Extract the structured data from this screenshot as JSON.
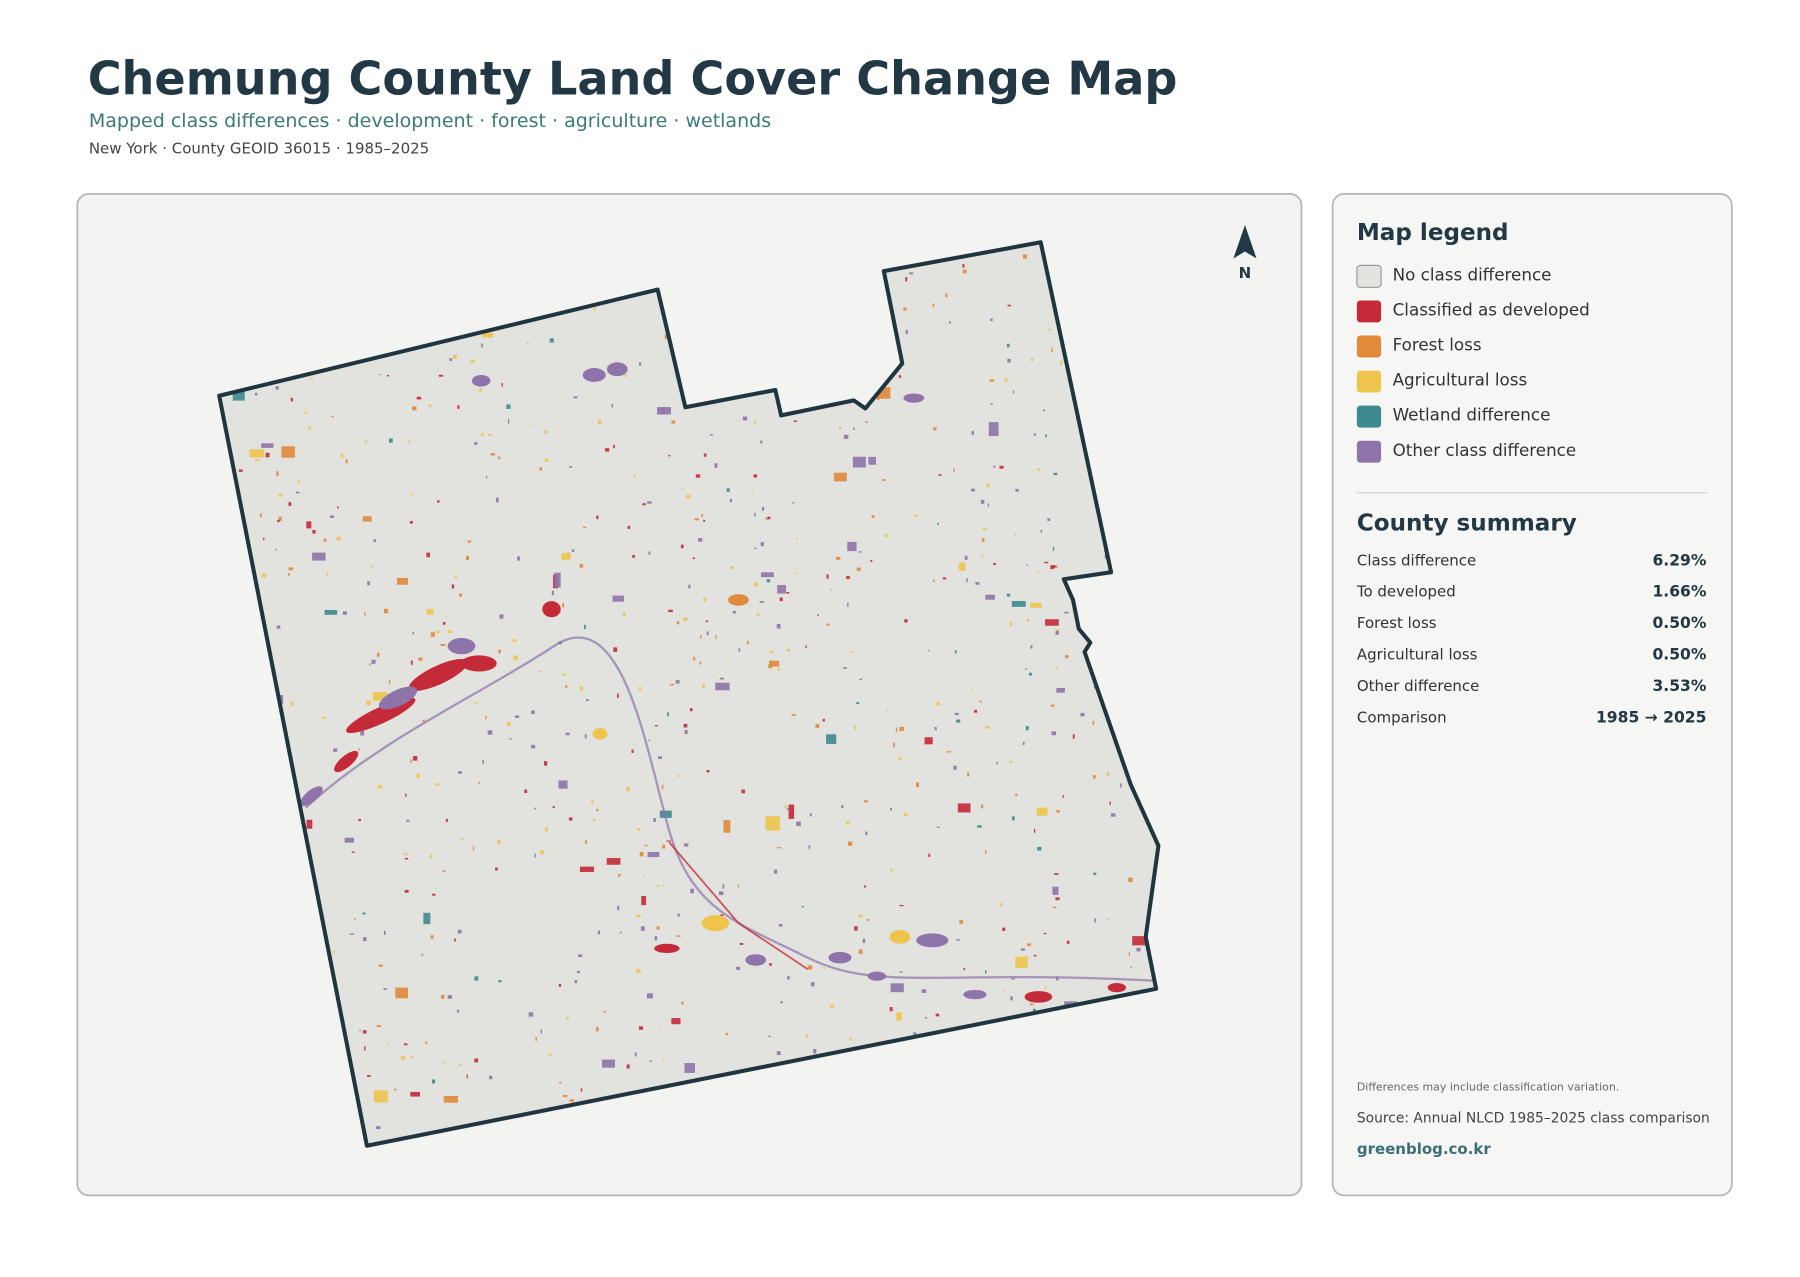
{
  "header": {
    "title": "Chemung County Land Cover Change Map",
    "subtitle": "Mapped class differences · development · forest · agriculture · wetlands",
    "meta": "New York · County GEOID 36015 · 1985–2025"
  },
  "map": {
    "north_label": "N"
  },
  "legend": {
    "title": "Map legend",
    "items": [
      {
        "label": "No class difference",
        "color": "#e2e2de"
      },
      {
        "label": "Classified as developed",
        "color": "#c42a37"
      },
      {
        "label": "Forest loss",
        "color": "#e08a3a"
      },
      {
        "label": "Agricultural loss",
        "color": "#efc44c"
      },
      {
        "label": "Wetland difference",
        "color": "#3e8a90"
      },
      {
        "label": "Other class difference",
        "color": "#8e74a9"
      }
    ]
  },
  "summary": {
    "title": "County summary",
    "rows": [
      [
        "Class difference",
        "6.29%"
      ],
      [
        "To developed",
        "1.66%"
      ],
      [
        "Forest loss",
        "0.50%"
      ],
      [
        "Agricultural loss",
        "0.50%"
      ],
      [
        "Other difference",
        "3.53%"
      ],
      [
        "Comparison",
        "1985 → 2025"
      ]
    ]
  },
  "footer": {
    "note": "Differences may include classification variation.",
    "source": "Source: Annual NLCD 1985–2025 class comparison",
    "site": "greenblog.co.kr"
  }
}
